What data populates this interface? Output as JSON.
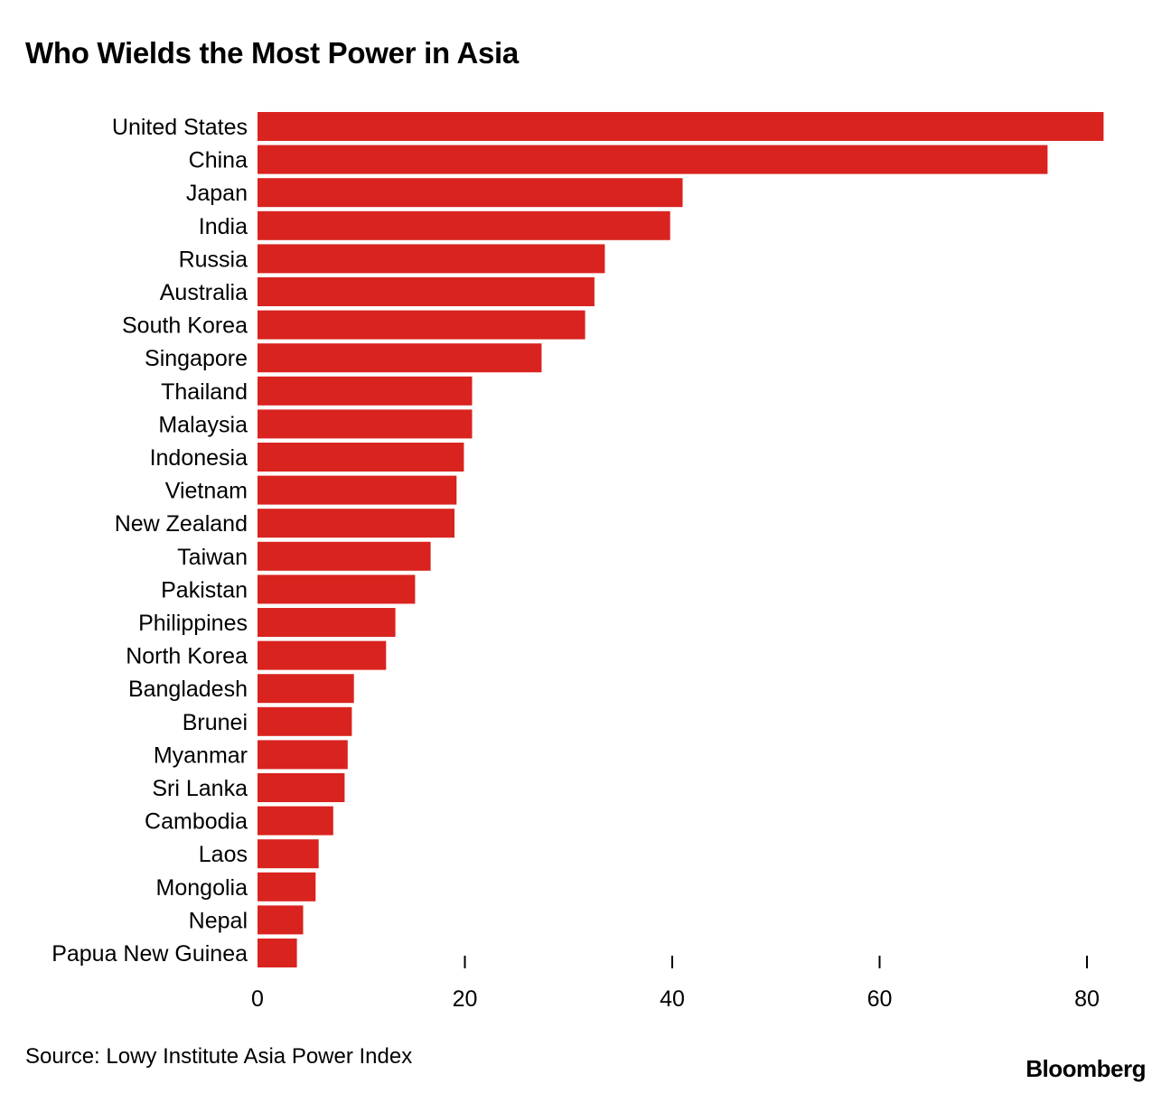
{
  "chart_data": {
    "type": "bar",
    "orientation": "horizontal",
    "title": "Who Wields the Most Power in Asia",
    "categories": [
      "United States",
      "China",
      "Japan",
      "India",
      "Russia",
      "Australia",
      "South Korea",
      "Singapore",
      "Thailand",
      "Malaysia",
      "Indonesia",
      "Vietnam",
      "New Zealand",
      "Taiwan",
      "Pakistan",
      "Philippines",
      "North Korea",
      "Bangladesh",
      "Brunei",
      "Myanmar",
      "Sri Lanka",
      "Cambodia",
      "Laos",
      "Mongolia",
      "Nepal",
      "Papua New Guinea"
    ],
    "values": [
      81.6,
      76.2,
      41.0,
      39.8,
      33.5,
      32.5,
      31.6,
      27.4,
      20.7,
      20.7,
      19.9,
      19.2,
      19.0,
      16.7,
      15.2,
      13.3,
      12.4,
      9.3,
      9.1,
      8.7,
      8.4,
      7.3,
      5.9,
      5.6,
      4.4,
      3.8
    ],
    "xticks": [
      0,
      20,
      40,
      60,
      80
    ],
    "xlim": [
      0,
      85
    ],
    "xlabel": "",
    "ylabel": "",
    "color": "#d9231f",
    "grid": false
  },
  "footer": {
    "source": "Source: Lowy Institute Asia Power Index",
    "brand": "Bloomberg"
  }
}
